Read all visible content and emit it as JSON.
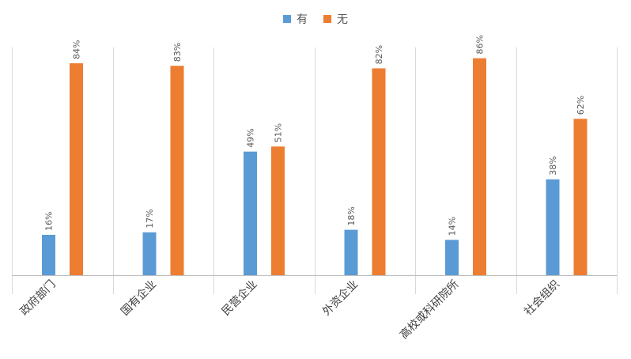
{
  "chart_data": {
    "type": "bar",
    "categories": [
      "政府部门",
      "国有企业",
      "民营企业",
      "外资企业",
      "高校或科研院所",
      "社会组织"
    ],
    "series": [
      {
        "name": "有",
        "values": [
          16,
          17,
          49,
          18,
          14,
          38
        ],
        "labels": [
          "16%",
          "17%",
          "49%",
          "18%",
          "14%",
          "38%"
        ],
        "color": "#5b9bd5"
      },
      {
        "name": "无",
        "values": [
          84,
          83,
          51,
          82,
          86,
          62
        ],
        "labels": [
          "84%",
          "83%",
          "51%",
          "82%",
          "86%",
          "62%"
        ],
        "color": "#ed7d31"
      }
    ],
    "ylim": [
      0,
      100
    ],
    "grid": "vertical category separators",
    "legend_position": "top-center"
  }
}
